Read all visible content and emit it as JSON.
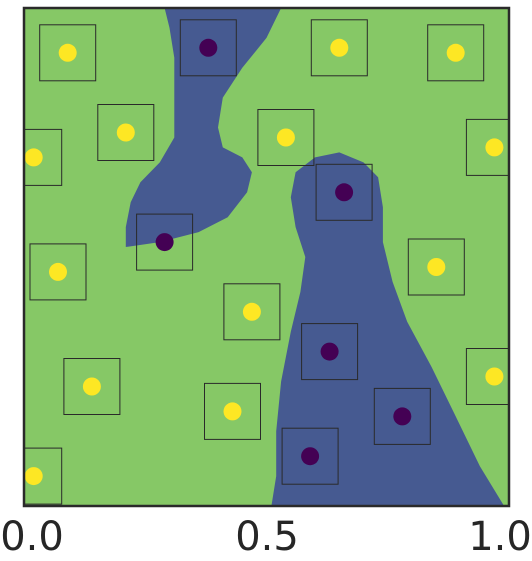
{
  "chart_data": {
    "type": "scatter",
    "title": "",
    "xlabel": "",
    "ylabel": "",
    "xlim": [
      0.0,
      1.0
    ],
    "ylim": [
      0.0,
      1.0
    ],
    "x_ticks": [
      "0.0",
      "0.5",
      "1.0"
    ],
    "y_ticks": [],
    "grid": false,
    "legend": "none",
    "colors": {
      "background_region": "#86c866",
      "decision_region": "#465a91",
      "class_yellow": "#fde724",
      "class_purple": "#440154",
      "box_outline": "#2a2a2a",
      "frame": "#2a2a2a"
    },
    "regions": [
      {
        "class": "purple",
        "boundary": [
          [
            0.29,
            1.0
          ],
          [
            0.53,
            1.0
          ],
          [
            0.5,
            0.94
          ],
          [
            0.45,
            0.88
          ],
          [
            0.41,
            0.82
          ],
          [
            0.4,
            0.76
          ],
          [
            0.41,
            0.72
          ],
          [
            0.45,
            0.7
          ],
          [
            0.47,
            0.67
          ],
          [
            0.46,
            0.63
          ],
          [
            0.42,
            0.58
          ],
          [
            0.36,
            0.55
          ],
          [
            0.28,
            0.53
          ],
          [
            0.21,
            0.52
          ],
          [
            0.21,
            0.56
          ],
          [
            0.22,
            0.61
          ],
          [
            0.24,
            0.65
          ],
          [
            0.28,
            0.69
          ],
          [
            0.31,
            0.74
          ],
          [
            0.31,
            0.82
          ],
          [
            0.31,
            0.9
          ],
          [
            0.3,
            0.96
          ]
        ]
      },
      {
        "class": "purple",
        "boundary": [
          [
            0.51,
            0.0
          ],
          [
            0.99,
            0.0
          ],
          [
            0.94,
            0.08
          ],
          [
            0.89,
            0.18
          ],
          [
            0.84,
            0.28
          ],
          [
            0.79,
            0.37
          ],
          [
            0.76,
            0.45
          ],
          [
            0.74,
            0.53
          ],
          [
            0.74,
            0.6
          ],
          [
            0.73,
            0.66
          ],
          [
            0.7,
            0.69
          ],
          [
            0.65,
            0.71
          ],
          [
            0.6,
            0.7
          ],
          [
            0.56,
            0.67
          ],
          [
            0.55,
            0.62
          ],
          [
            0.56,
            0.56
          ],
          [
            0.58,
            0.5
          ],
          [
            0.57,
            0.43
          ],
          [
            0.55,
            0.35
          ],
          [
            0.53,
            0.25
          ],
          [
            0.52,
            0.15
          ],
          [
            0.52,
            0.06
          ]
        ]
      }
    ],
    "series": [
      {
        "class": "yellow",
        "points": [
          {
            "x": 0.09,
            "y": 0.91
          },
          {
            "x": 0.65,
            "y": 0.92
          },
          {
            "x": 0.89,
            "y": 0.91
          },
          {
            "x": 0.21,
            "y": 0.75
          },
          {
            "x": 0.54,
            "y": 0.74
          },
          {
            "x": 0.97,
            "y": 0.72
          },
          {
            "x": 0.02,
            "y": 0.7
          },
          {
            "x": 0.07,
            "y": 0.47
          },
          {
            "x": 0.85,
            "y": 0.48
          },
          {
            "x": 0.47,
            "y": 0.39
          },
          {
            "x": 0.14,
            "y": 0.24
          },
          {
            "x": 0.97,
            "y": 0.26
          },
          {
            "x": 0.43,
            "y": 0.19
          },
          {
            "x": 0.02,
            "y": 0.06
          }
        ]
      },
      {
        "class": "purple",
        "points": [
          {
            "x": 0.38,
            "y": 0.92
          },
          {
            "x": 0.66,
            "y": 0.63
          },
          {
            "x": 0.29,
            "y": 0.53
          },
          {
            "x": 0.63,
            "y": 0.31
          },
          {
            "x": 0.78,
            "y": 0.18
          },
          {
            "x": 0.59,
            "y": 0.1
          }
        ]
      }
    ]
  }
}
